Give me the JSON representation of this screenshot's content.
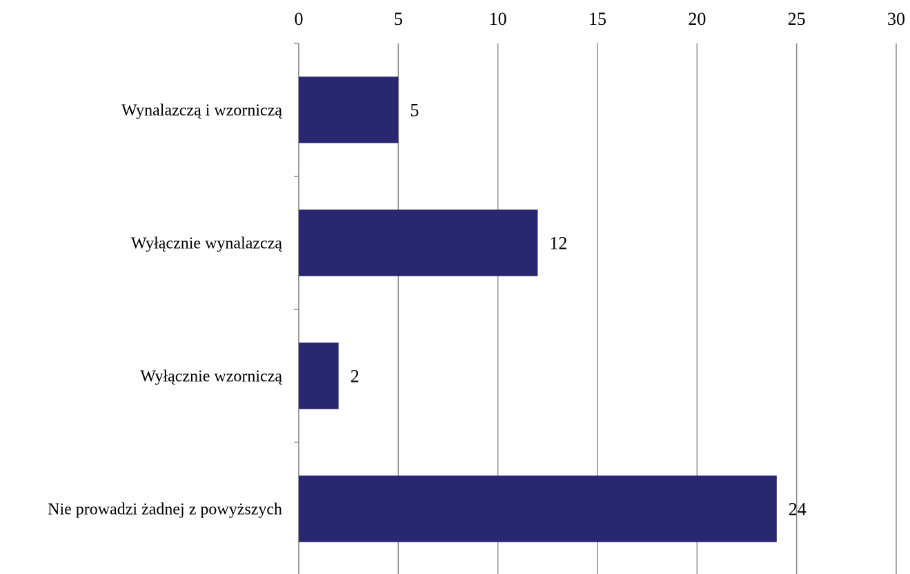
{
  "chart_data": {
    "type": "bar",
    "orientation": "horizontal",
    "categories": [
      "Wynalazczą i wzorniczą",
      "Wyłącznie wynalazczą",
      "Wyłącznie wzorniczą",
      "Nie prowadzi żadnej z powyższych"
    ],
    "values": [
      5,
      12,
      2,
      24
    ],
    "data_labels": [
      "5",
      "12",
      "2",
      "24"
    ],
    "x_ticks": [
      "0",
      "5",
      "10",
      "15",
      "20",
      "25",
      "30"
    ],
    "xlim": [
      0,
      30
    ],
    "x_axis_position": "top",
    "grid": true,
    "legend": "none",
    "bar_color": "#29276f",
    "grid_color": "#8c8c8c"
  }
}
